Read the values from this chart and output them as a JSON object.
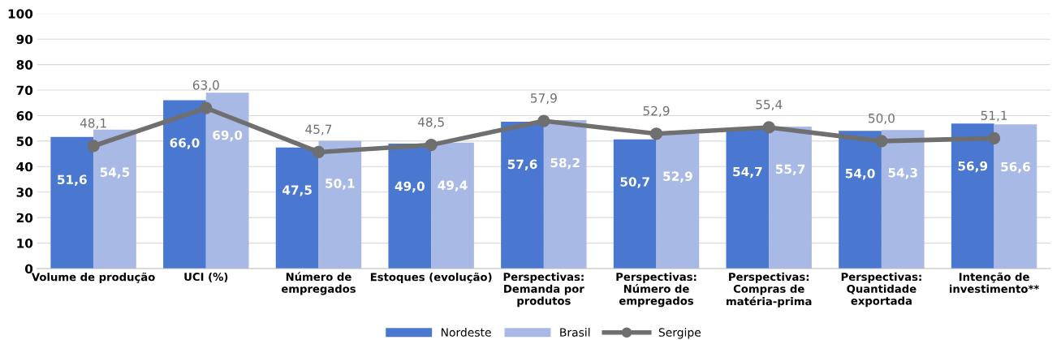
{
  "chart_data": {
    "type": "bar",
    "categories": [
      "Volume de produção",
      "UCI (%)",
      "Número de\nempregados",
      "Estoques (evolução)",
      "Perspectivas:\nDemanda por\nprodutos",
      "Perspectivas:\nNúmero de\nempregados",
      "Perspectivas:\nCompras de\nmatéria-prima",
      "Perspectivas:\nQuantidade\nexportada",
      "Intenção de\ninvestimento**"
    ],
    "series": [
      {
        "name": "Nordeste",
        "color": "#4a78d0",
        "values": [
          51.6,
          66.0,
          47.5,
          49.0,
          57.6,
          50.7,
          54.7,
          54.0,
          56.9
        ],
        "value_labels": [
          "51,6",
          "66,0",
          "47,5",
          "49,0",
          "57,6",
          "50,7",
          "54,7",
          "54,0",
          "56,9"
        ]
      },
      {
        "name": "Brasil",
        "color": "#a9b9e6",
        "values": [
          54.5,
          69.0,
          50.1,
          49.4,
          58.2,
          52.9,
          55.7,
          54.3,
          56.6
        ],
        "value_labels": [
          "54,5",
          "69,0",
          "50,1",
          "49,4",
          "58,2",
          "52,9",
          "55,7",
          "54,3",
          "56,6"
        ]
      },
      {
        "name": "Sergipe",
        "type": "line",
        "color": "#6f6f6f",
        "marker": "circle",
        "values": [
          48.1,
          63.0,
          45.7,
          48.5,
          57.9,
          52.9,
          55.4,
          50.0,
          51.1
        ],
        "value_labels": [
          "48,1",
          "63,0",
          "45,7",
          "48,5",
          "57,9",
          "52,9",
          "55,4",
          "50,0",
          "51,1"
        ]
      }
    ],
    "ylim": [
      0,
      100
    ],
    "yticks": [
      0,
      10,
      20,
      30,
      40,
      50,
      60,
      70,
      80,
      90,
      100
    ],
    "grid": "y",
    "legend": "bottom"
  }
}
